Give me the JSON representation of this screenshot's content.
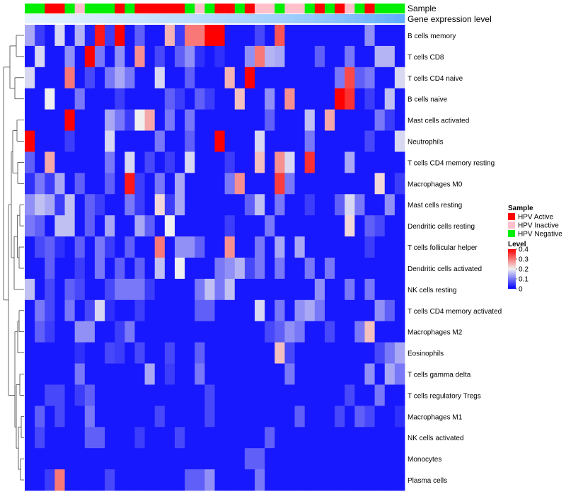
{
  "chart_data": {
    "type": "heatmap",
    "annotation_tracks": [
      "Sample",
      "Gene expression level"
    ],
    "rows": [
      "B cells memory",
      "T cells CD8",
      "T cells CD4 naive",
      "B cells naive",
      "Mast cells activated",
      "Neutrophils",
      "T cells CD4 memory resting",
      "Macrophages M0",
      "Mast cells resting",
      "Dendritic cells resting",
      "T cells follicular helper",
      "Dendritic cells activated",
      "NK cells resting",
      "T cells CD4 memory activated",
      "Macrophages M2",
      "Eosinophils",
      "T cells gamma delta",
      "T cells regulatory  Tregs",
      "Macrophages M1",
      "NK cells activated",
      "Monocytes",
      "Plasma cells"
    ],
    "sample_groups": [
      "N",
      "N",
      "A",
      "A",
      "N",
      "I",
      "N",
      "N",
      "N",
      "A",
      "N",
      "A",
      "A",
      "A",
      "A",
      "A",
      "N",
      "I",
      "N",
      "A",
      "A",
      "N",
      "A",
      "I",
      "I",
      "N",
      "I",
      "I",
      "N",
      "A",
      "N",
      "A",
      "I",
      "N",
      "A",
      "N",
      "N",
      "N"
    ],
    "gene_expression_track": [
      0.02,
      0.02,
      0.04,
      0.06,
      0.08,
      0.1,
      0.12,
      0.14,
      0.16,
      0.18,
      0.2,
      0.22,
      0.24,
      0.26,
      0.28,
      0.3,
      0.32,
      0.34,
      0.36,
      0.38,
      0.4,
      0.42,
      0.44,
      0.46,
      0.48,
      0.5,
      0.52,
      0.55,
      0.58,
      0.61,
      0.64,
      0.68,
      0.72,
      0.76,
      0.8,
      0.85,
      0.9,
      0.95
    ],
    "values": [
      [
        0.14,
        0.05,
        0.02,
        0.18,
        0.02,
        0.15,
        0.03,
        0.38,
        0.05,
        0.4,
        0.02,
        0.08,
        0.02,
        0.02,
        0.25,
        0.05,
        0.3,
        0.3,
        0.4,
        0.4,
        0.02,
        0.02,
        0.02,
        0.06,
        0.02,
        0.33,
        0.02,
        0.02,
        0.02,
        0.02,
        0.02,
        0.02,
        0.02,
        0.02,
        0.12,
        0.02,
        0.02,
        0.02
      ],
      [
        0.02,
        0.18,
        0.02,
        0.02,
        0.12,
        0.02,
        0.4,
        0.1,
        0.02,
        0.12,
        0.02,
        0.28,
        0.02,
        0.06,
        0.02,
        0.08,
        0.12,
        0.04,
        0.02,
        0.04,
        0.02,
        0.02,
        0.12,
        0.3,
        0.15,
        0.14,
        0.02,
        0.02,
        0.02,
        0.08,
        0.02,
        0.02,
        0.1,
        0.02,
        0.02,
        0.15,
        0.15,
        0.02
      ],
      [
        0.18,
        0.02,
        0.02,
        0.02,
        0.3,
        0.02,
        0.06,
        0.02,
        0.1,
        0.14,
        0.1,
        0.02,
        0.02,
        0.18,
        0.02,
        0.02,
        0.08,
        0.02,
        0.02,
        0.02,
        0.25,
        0.02,
        0.4,
        0.02,
        0.02,
        0.02,
        0.02,
        0.02,
        0.02,
        0.02,
        0.02,
        0.1,
        0.34,
        0.08,
        0.1,
        0.02,
        0.02,
        0.18
      ],
      [
        0.02,
        0.02,
        0.2,
        0.02,
        0.02,
        0.1,
        0.02,
        0.02,
        0.02,
        0.05,
        0.02,
        0.02,
        0.02,
        0.02,
        0.08,
        0.05,
        0.02,
        0.08,
        0.05,
        0.02,
        0.02,
        0.24,
        0.02,
        0.02,
        0.12,
        0.02,
        0.28,
        0.02,
        0.02,
        0.02,
        0.02,
        0.4,
        0.36,
        0.02,
        0.05,
        0.02,
        0.16,
        0.02
      ],
      [
        0.02,
        0.02,
        0.02,
        0.02,
        0.4,
        0.02,
        0.02,
        0.02,
        0.14,
        0.1,
        0.05,
        0.2,
        0.26,
        0.02,
        0.1,
        0.02,
        0.1,
        0.02,
        0.02,
        0.02,
        0.02,
        0.02,
        0.02,
        0.02,
        0.08,
        0.02,
        0.02,
        0.02,
        0.16,
        0.02,
        0.26,
        0.02,
        0.02,
        0.02,
        0.02,
        0.1,
        0.05,
        0.02
      ],
      [
        0.4,
        0.02,
        0.02,
        0.02,
        0.05,
        0.02,
        0.02,
        0.02,
        0.18,
        0.02,
        0.02,
        0.02,
        0.02,
        0.1,
        0.02,
        0.02,
        0.08,
        0.02,
        0.02,
        0.4,
        0.02,
        0.02,
        0.02,
        0.18,
        0.02,
        0.02,
        0.02,
        0.02,
        0.1,
        0.02,
        0.02,
        0.02,
        0.02,
        0.02,
        0.06,
        0.02,
        0.02,
        0.18
      ],
      [
        0.08,
        0.02,
        0.26,
        0.02,
        0.02,
        0.02,
        0.02,
        0.02,
        0.1,
        0.02,
        0.18,
        0.02,
        0.06,
        0.02,
        0.05,
        0.02,
        0.18,
        0.02,
        0.02,
        0.02,
        0.05,
        0.02,
        0.02,
        0.24,
        0.02,
        0.28,
        0.18,
        0.02,
        0.36,
        0.02,
        0.02,
        0.02,
        0.14,
        0.02,
        0.02,
        0.02,
        0.02,
        0.02
      ],
      [
        0.04,
        0.1,
        0.05,
        0.14,
        0.02,
        0.08,
        0.02,
        0.02,
        0.08,
        0.02,
        0.38,
        0.05,
        0.02,
        0.1,
        0.02,
        0.14,
        0.02,
        0.02,
        0.02,
        0.02,
        0.1,
        0.28,
        0.02,
        0.02,
        0.02,
        0.35,
        0.1,
        0.02,
        0.02,
        0.02,
        0.02,
        0.02,
        0.02,
        0.02,
        0.02,
        0.22,
        0.02,
        0.05
      ],
      [
        0.12,
        0.16,
        0.14,
        0.05,
        0.16,
        0.02,
        0.08,
        0.05,
        0.02,
        0.02,
        0.1,
        0.05,
        0.02,
        0.22,
        0.05,
        0.14,
        0.02,
        0.02,
        0.02,
        0.02,
        0.02,
        0.02,
        0.08,
        0.16,
        0.02,
        0.1,
        0.02,
        0.02,
        0.05,
        0.02,
        0.02,
        0.08,
        0.18,
        0.1,
        0.02,
        0.02,
        0.12,
        0.02
      ],
      [
        0.1,
        0.08,
        0.02,
        0.16,
        0.16,
        0.02,
        0.08,
        0.02,
        0.14,
        0.02,
        0.02,
        0.14,
        0.08,
        0.02,
        0.2,
        0.02,
        0.02,
        0.02,
        0.02,
        0.02,
        0.05,
        0.02,
        0.02,
        0.02,
        0.1,
        0.02,
        0.02,
        0.02,
        0.02,
        0.02,
        0.02,
        0.02,
        0.22,
        0.02,
        0.08,
        0.06,
        0.02,
        0.02
      ],
      [
        0.02,
        0.06,
        0.08,
        0.04,
        0.02,
        0.08,
        0.02,
        0.1,
        0.05,
        0.02,
        0.08,
        0.02,
        0.02,
        0.3,
        0.02,
        0.12,
        0.12,
        0.08,
        0.02,
        0.02,
        0.28,
        0.02,
        0.02,
        0.1,
        0.02,
        0.14,
        0.02,
        0.14,
        0.02,
        0.02,
        0.02,
        0.02,
        0.02,
        0.02,
        0.05,
        0.02,
        0.02,
        0.02
      ],
      [
        0.02,
        0.02,
        0.08,
        0.02,
        0.02,
        0.05,
        0.02,
        0.1,
        0.02,
        0.08,
        0.02,
        0.08,
        0.02,
        0.16,
        0.02,
        0.2,
        0.02,
        0.02,
        0.02,
        0.1,
        0.12,
        0.15,
        0.06,
        0.1,
        0.02,
        0.1,
        0.02,
        0.02,
        0.1,
        0.02,
        0.1,
        0.02,
        0.02,
        0.02,
        0.02,
        0.02,
        0.02,
        0.02
      ],
      [
        0.16,
        0.02,
        0.06,
        0.02,
        0.08,
        0.06,
        0.02,
        0.02,
        0.06,
        0.1,
        0.1,
        0.1,
        0.05,
        0.02,
        0.02,
        0.02,
        0.02,
        0.1,
        0.16,
        0.1,
        0.16,
        0.02,
        0.02,
        0.02,
        0.02,
        0.02,
        0.02,
        0.02,
        0.02,
        0.12,
        0.02,
        0.02,
        0.1,
        0.02,
        0.1,
        0.02,
        0.02,
        0.02
      ],
      [
        0.02,
        0.1,
        0.06,
        0.02,
        0.1,
        0.02,
        0.06,
        0.18,
        0.04,
        0.02,
        0.02,
        0.05,
        0.02,
        0.02,
        0.02,
        0.02,
        0.02,
        0.08,
        0.08,
        0.02,
        0.02,
        0.02,
        0.02,
        0.18,
        0.02,
        0.1,
        0.02,
        0.12,
        0.14,
        0.1,
        0.02,
        0.02,
        0.02,
        0.02,
        0.02,
        0.12,
        0.08,
        0.02
      ],
      [
        0.02,
        0.08,
        0.05,
        0.02,
        0.02,
        0.12,
        0.12,
        0.02,
        0.02,
        0.05,
        0.1,
        0.02,
        0.02,
        0.02,
        0.02,
        0.02,
        0.02,
        0.02,
        0.02,
        0.02,
        0.02,
        0.02,
        0.02,
        0.02,
        0.06,
        0.08,
        0.12,
        0.1,
        0.02,
        0.02,
        0.06,
        0.02,
        0.02,
        0.1,
        0.24,
        0.02,
        0.02,
        0.02
      ],
      [
        0.02,
        0.02,
        0.02,
        0.02,
        0.02,
        0.04,
        0.02,
        0.02,
        0.06,
        0.05,
        0.02,
        0.06,
        0.02,
        0.02,
        0.06,
        0.02,
        0.02,
        0.08,
        0.02,
        0.02,
        0.02,
        0.02,
        0.02,
        0.02,
        0.02,
        0.24,
        0.06,
        0.02,
        0.02,
        0.02,
        0.02,
        0.02,
        0.02,
        0.02,
        0.02,
        0.06,
        0.1,
        0.14
      ],
      [
        0.02,
        0.02,
        0.02,
        0.02,
        0.02,
        0.1,
        0.02,
        0.02,
        0.02,
        0.02,
        0.02,
        0.02,
        0.14,
        0.02,
        0.05,
        0.02,
        0.02,
        0.1,
        0.02,
        0.02,
        0.02,
        0.02,
        0.02,
        0.02,
        0.02,
        0.02,
        0.1,
        0.02,
        0.02,
        0.02,
        0.02,
        0.02,
        0.02,
        0.02,
        0.12,
        0.02,
        0.14,
        0.1
      ],
      [
        0.02,
        0.02,
        0.06,
        0.06,
        0.02,
        0.05,
        0.08,
        0.02,
        0.02,
        0.02,
        0.02,
        0.02,
        0.02,
        0.02,
        0.02,
        0.02,
        0.02,
        0.02,
        0.06,
        0.02,
        0.02,
        0.02,
        0.02,
        0.02,
        0.02,
        0.02,
        0.02,
        0.02,
        0.02,
        0.02,
        0.02,
        0.02,
        0.06,
        0.02,
        0.02,
        0.1,
        0.02,
        0.02
      ],
      [
        0.02,
        0.08,
        0.02,
        0.06,
        0.02,
        0.02,
        0.1,
        0.02,
        0.02,
        0.02,
        0.02,
        0.02,
        0.02,
        0.06,
        0.02,
        0.02,
        0.02,
        0.02,
        0.06,
        0.02,
        0.02,
        0.02,
        0.02,
        0.02,
        0.02,
        0.02,
        0.02,
        0.08,
        0.02,
        0.02,
        0.02,
        0.06,
        0.02,
        0.08,
        0.06,
        0.02,
        0.02,
        0.04
      ],
      [
        0.02,
        0.06,
        0.02,
        0.02,
        0.02,
        0.02,
        0.08,
        0.08,
        0.02,
        0.02,
        0.02,
        0.05,
        0.02,
        0.02,
        0.02,
        0.06,
        0.02,
        0.02,
        0.02,
        0.02,
        0.02,
        0.02,
        0.02,
        0.02,
        0.08,
        0.02,
        0.02,
        0.02,
        0.02,
        0.02,
        0.02,
        0.02,
        0.02,
        0.02,
        0.02,
        0.02,
        0.02,
        0.02
      ],
      [
        0.02,
        0.02,
        0.02,
        0.02,
        0.02,
        0.02,
        0.02,
        0.02,
        0.02,
        0.02,
        0.02,
        0.02,
        0.02,
        0.02,
        0.02,
        0.02,
        0.02,
        0.02,
        0.02,
        0.02,
        0.02,
        0.02,
        0.08,
        0.08,
        0.02,
        0.02,
        0.02,
        0.02,
        0.02,
        0.02,
        0.02,
        0.02,
        0.02,
        0.02,
        0.02,
        0.02,
        0.02,
        0.02
      ],
      [
        0.02,
        0.02,
        0.05,
        0.3,
        0.02,
        0.02,
        0.02,
        0.02,
        0.06,
        0.02,
        0.02,
        0.02,
        0.02,
        0.02,
        0.02,
        0.02,
        0.08,
        0.08,
        0.12,
        0.02,
        0.02,
        0.02,
        0.02,
        0.1,
        0.02,
        0.02,
        0.02,
        0.02,
        0.02,
        0.02,
        0.02,
        0.02,
        0.02,
        0.02,
        0.02,
        0.02,
        0.02,
        0.02
      ]
    ],
    "legend_sample": {
      "title": "Sample",
      "entries": [
        {
          "label": "HPV Active",
          "code": "A",
          "color": "#ff0000"
        },
        {
          "label": "HPV Inactive",
          "code": "I",
          "color": "#ffc0cb"
        },
        {
          "label": "HPV Negative",
          "code": "N",
          "color": "#00ee00"
        }
      ]
    },
    "legend_level": {
      "title": "Level",
      "ticks": [
        0.4,
        0.3,
        0.2,
        0.1,
        0
      ],
      "colors": {
        "low": "#0000ff",
        "mid": "#f0f0f0",
        "high": "#ff0000"
      },
      "range": [
        0,
        0.4
      ]
    },
    "gene_track_colors": {
      "low": "#e8f4ff",
      "high": "#5aa9ff"
    },
    "legend_position": "right"
  }
}
